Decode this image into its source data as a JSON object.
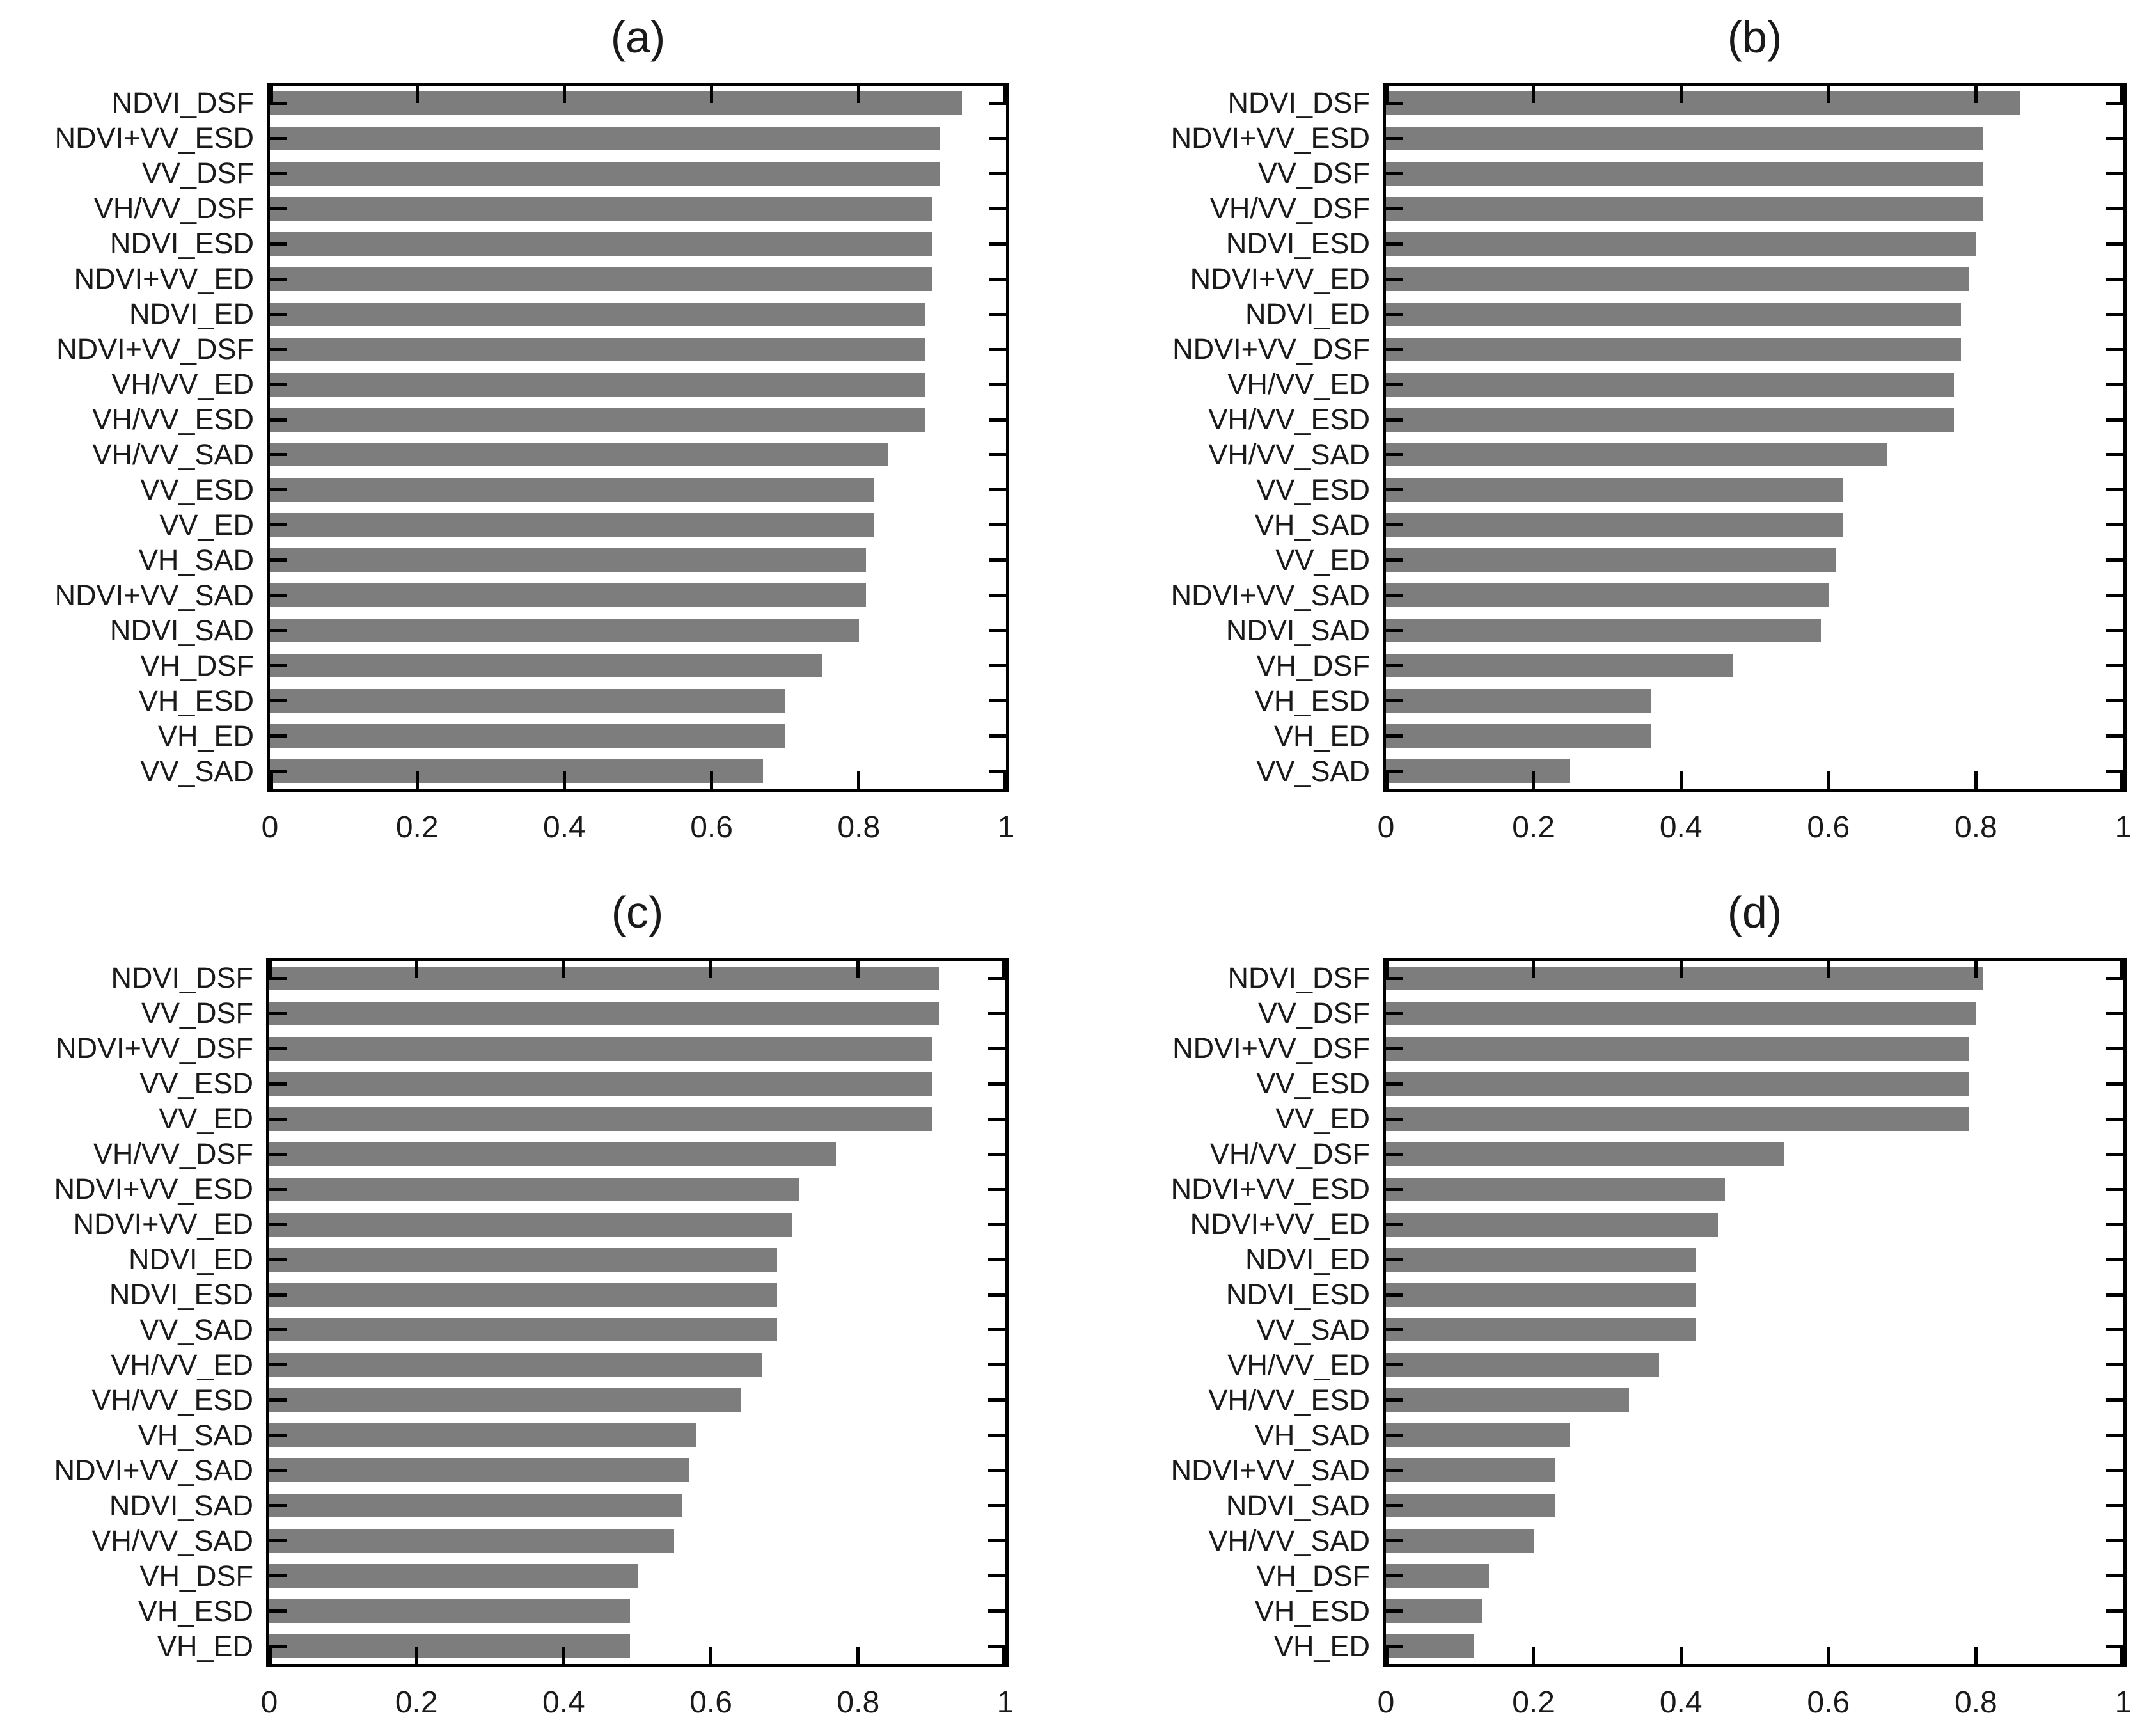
{
  "figure": {
    "background": "#ffffff",
    "bar_color": "#7d7d7d",
    "axis_color": "#000000",
    "text_color": "#1a1a1a"
  },
  "chart_data": [
    {
      "type": "bar",
      "orientation": "horizontal",
      "title": "(a)",
      "xlim": [
        0,
        1
      ],
      "xticks": [
        0,
        0.2,
        0.4,
        0.6,
        0.8,
        1
      ],
      "xtick_labels": [
        "0",
        "0.2",
        "0.4",
        "0.6",
        "0.8",
        "1"
      ],
      "grid": false,
      "categories": [
        "NDVI_DSF",
        "NDVI+VV_ESD",
        "VV_DSF",
        "VH/VV_DSF",
        "NDVI_ESD",
        "NDVI+VV_ED",
        "NDVI_ED",
        "NDVI+VV_DSF",
        "VH/VV_ED",
        "VH/VV_ESD",
        "VH/VV_SAD",
        "VV_ESD",
        "VV_ED",
        "VH_SAD",
        "NDVI+VV_SAD",
        "NDVI_SAD",
        "VH_DSF",
        "VH_ESD",
        "VH_ED",
        "VV_SAD"
      ],
      "values": [
        0.94,
        0.91,
        0.91,
        0.9,
        0.9,
        0.9,
        0.89,
        0.89,
        0.89,
        0.89,
        0.84,
        0.82,
        0.82,
        0.81,
        0.81,
        0.8,
        0.75,
        0.7,
        0.7,
        0.67
      ]
    },
    {
      "type": "bar",
      "orientation": "horizontal",
      "title": "(b)",
      "xlim": [
        0,
        1
      ],
      "xticks": [
        0,
        0.2,
        0.4,
        0.6,
        0.8,
        1
      ],
      "xtick_labels": [
        "0",
        "0.2",
        "0.4",
        "0.6",
        "0.8",
        "1"
      ],
      "grid": false,
      "categories": [
        "NDVI_DSF",
        "NDVI+VV_ESD",
        "VV_DSF",
        "VH/VV_DSF",
        "NDVI_ESD",
        "NDVI+VV_ED",
        "NDVI_ED",
        "NDVI+VV_DSF",
        "VH/VV_ED",
        "VH/VV_ESD",
        "VH/VV_SAD",
        "VV_ESD",
        "VH_SAD",
        "VV_ED",
        "NDVI+VV_SAD",
        "NDVI_SAD",
        "VH_DSF",
        "VH_ESD",
        "VH_ED",
        "VV_SAD"
      ],
      "values": [
        0.86,
        0.81,
        0.81,
        0.81,
        0.8,
        0.79,
        0.78,
        0.78,
        0.77,
        0.77,
        0.68,
        0.62,
        0.62,
        0.61,
        0.6,
        0.59,
        0.47,
        0.36,
        0.36,
        0.25
      ]
    },
    {
      "type": "bar",
      "orientation": "horizontal",
      "title": "(c)",
      "xlim": [
        0,
        1
      ],
      "xticks": [
        0,
        0.2,
        0.4,
        0.6,
        0.8,
        1
      ],
      "xtick_labels": [
        "0",
        "0.2",
        "0.4",
        "0.6",
        "0.8",
        "1"
      ],
      "grid": false,
      "categories": [
        "NDVI_DSF",
        "VV_DSF",
        "NDVI+VV_DSF",
        "VV_ESD",
        "VV_ED",
        "VH/VV_DSF",
        "NDVI+VV_ESD",
        "NDVI+VV_ED",
        "NDVI_ED",
        "NDVI_ESD",
        "VV_SAD",
        "VH/VV_ED",
        "VH/VV_ESD",
        "VH_SAD",
        "NDVI+VV_SAD",
        "NDVI_SAD",
        "VH/VV_SAD",
        "VH_DSF",
        "VH_ESD",
        "VH_ED"
      ],
      "values": [
        0.91,
        0.91,
        0.9,
        0.9,
        0.9,
        0.77,
        0.72,
        0.71,
        0.69,
        0.69,
        0.69,
        0.67,
        0.64,
        0.58,
        0.57,
        0.56,
        0.55,
        0.5,
        0.49,
        0.49
      ]
    },
    {
      "type": "bar",
      "orientation": "horizontal",
      "title": "(d)",
      "xlim": [
        0,
        1
      ],
      "xticks": [
        0,
        0.2,
        0.4,
        0.6,
        0.8,
        1
      ],
      "xtick_labels": [
        "0",
        "0.2",
        "0.4",
        "0.6",
        "0.8",
        "1"
      ],
      "grid": false,
      "categories": [
        "NDVI_DSF",
        "VV_DSF",
        "NDVI+VV_DSF",
        "VV_ESD",
        "VV_ED",
        "VH/VV_DSF",
        "NDVI+VV_ESD",
        "NDVI+VV_ED",
        "NDVI_ED",
        "NDVI_ESD",
        "VV_SAD",
        "VH/VV_ED",
        "VH/VV_ESD",
        "VH_SAD",
        "NDVI+VV_SAD",
        "NDVI_SAD",
        "VH/VV_SAD",
        "VH_DSF",
        "VH_ESD",
        "VH_ED"
      ],
      "values": [
        0.81,
        0.8,
        0.79,
        0.79,
        0.79,
        0.54,
        0.46,
        0.45,
        0.42,
        0.42,
        0.42,
        0.37,
        0.33,
        0.25,
        0.23,
        0.23,
        0.2,
        0.14,
        0.13,
        0.12
      ]
    }
  ]
}
